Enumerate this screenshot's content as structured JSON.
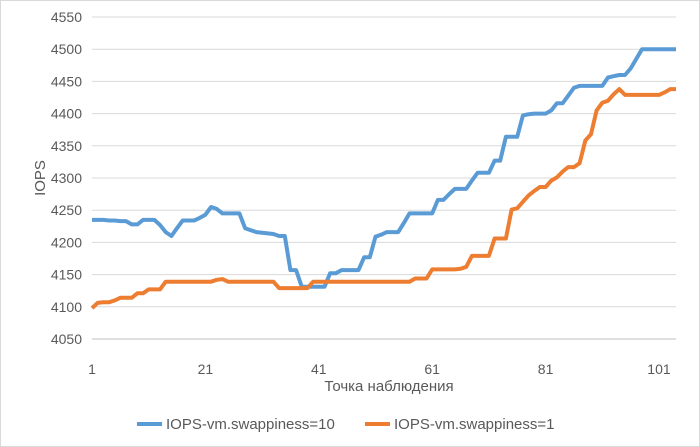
{
  "chart_data": {
    "type": "line",
    "title": "",
    "xlabel": "Точка наблюдения",
    "ylabel": "IOPS",
    "ylim": [
      4050,
      4550
    ],
    "yticks": [
      4050,
      4100,
      4150,
      4200,
      4250,
      4300,
      4350,
      4400,
      4450,
      4500,
      4550
    ],
    "xlim": [
      1,
      104
    ],
    "xticks": [
      1,
      21,
      41,
      61,
      81,
      101
    ],
    "grid": "horizontal",
    "legend": "bottom",
    "series": [
      {
        "name": "IOPS-vm.swappiness=10",
        "color": "#5b9bd5",
        "values": [
          4235,
          4235,
          4235,
          4234,
          4234,
          4233,
          4233,
          4228,
          4228,
          4235,
          4235,
          4235,
          4227,
          4216,
          4210,
          4222,
          4234,
          4234,
          4234,
          4238,
          4243,
          4255,
          4252,
          4245,
          4245,
          4245,
          4245,
          4222,
          4219,
          4216,
          4215,
          4214,
          4213,
          4210,
          4210,
          4157,
          4157,
          4131,
          4131,
          4131,
          4131,
          4131,
          4152,
          4152,
          4157,
          4157,
          4157,
          4157,
          4177,
          4177,
          4209,
          4212,
          4216,
          4216,
          4216,
          4230,
          4245,
          4245,
          4245,
          4245,
          4245,
          4266,
          4266,
          4275,
          4283,
          4283,
          4283,
          4296,
          4308,
          4308,
          4308,
          4327,
          4327,
          4364,
          4364,
          4364,
          4397,
          4399,
          4400,
          4400,
          4400,
          4405,
          4416,
          4416,
          4428,
          4440,
          4443,
          4443,
          4443,
          4443,
          4443,
          4456,
          4458,
          4460,
          4460,
          4470,
          4485,
          4500,
          4500,
          4500,
          4500,
          4500,
          4500,
          4500
        ]
      },
      {
        "name": "IOPS-vm.swappiness=1",
        "color": "#ed7d31",
        "values": [
          4098,
          4106,
          4107,
          4107,
          4110,
          4114,
          4114,
          4114,
          4121,
          4121,
          4127,
          4127,
          4127,
          4139,
          4139,
          4139,
          4139,
          4139,
          4139,
          4139,
          4139,
          4139,
          4142,
          4143,
          4139,
          4139,
          4139,
          4139,
          4139,
          4139,
          4139,
          4139,
          4139,
          4129,
          4129,
          4129,
          4129,
          4129,
          4129,
          4139,
          4139,
          4139,
          4139,
          4139,
          4139,
          4139,
          4139,
          4139,
          4139,
          4139,
          4139,
          4139,
          4139,
          4139,
          4139,
          4139,
          4139,
          4144,
          4144,
          4144,
          4158,
          4158,
          4158,
          4158,
          4158,
          4159,
          4162,
          4179,
          4179,
          4179,
          4179,
          4206,
          4206,
          4206,
          4251,
          4253,
          4263,
          4273,
          4280,
          4286,
          4286,
          4296,
          4301,
          4310,
          4317,
          4317,
          4323,
          4358,
          4368,
          4405,
          4417,
          4420,
          4430,
          4438,
          4429,
          4429,
          4429,
          4429,
          4429,
          4429,
          4429,
          4433,
          4438,
          4438
        ]
      }
    ]
  }
}
